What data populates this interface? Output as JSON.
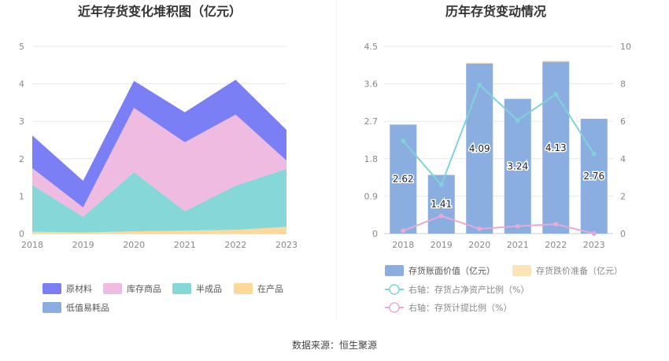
{
  "footer": {
    "source": "数据来源：恒生聚源"
  },
  "chart_data": [
    {
      "type": "area",
      "title": "近年存货变化堆积图（亿元）",
      "x": [
        "2018",
        "2019",
        "2020",
        "2021",
        "2022",
        "2023"
      ],
      "ylim": [
        0,
        5
      ],
      "yticks": [
        "0",
        "1",
        "2",
        "3",
        "4",
        "5"
      ],
      "series": [
        {
          "name": "在产品",
          "color": "#fdd898",
          "values": [
            0.05,
            0.03,
            0.06,
            0.08,
            0.1,
            0.18
          ]
        },
        {
          "name": "半成品",
          "color": "#86d8d8",
          "values": [
            1.25,
            0.42,
            1.58,
            0.52,
            1.18,
            1.55
          ]
        },
        {
          "name": "库存商品",
          "color": "#efbbe0",
          "values": [
            0.45,
            0.25,
            1.72,
            1.84,
            1.9,
            0.22
          ]
        },
        {
          "name": "原材料",
          "color": "#7b7ff5",
          "values": [
            0.87,
            0.71,
            0.72,
            0.8,
            0.93,
            0.82
          ]
        },
        {
          "name": "低值易耗品",
          "color": "#8aaee0",
          "values": [
            0,
            0,
            0,
            0,
            0,
            0
          ]
        }
      ],
      "legend_order": [
        "原材料",
        "库存商品",
        "半成品",
        "在产品",
        "低值易耗品"
      ],
      "grid": true,
      "legend": "bottom"
    },
    {
      "type": "bar",
      "title": "历年存货变动情况",
      "categories": [
        "2018",
        "2019",
        "2020",
        "2021",
        "2022",
        "2023"
      ],
      "ylim_left": [
        0,
        4.5
      ],
      "yticks_left": [
        "0",
        "0.9",
        "1.8",
        "2.7",
        "3.6",
        "4.5"
      ],
      "ylim_right": [
        0,
        10
      ],
      "yticks_right": [
        "0",
        "2",
        "4",
        "6",
        "8",
        "10"
      ],
      "bars": [
        {
          "name": "存货账面价值（亿元）",
          "color": "#8aaee0",
          "values": [
            2.62,
            1.41,
            4.09,
            3.24,
            4.13,
            2.76
          ],
          "labels": [
            "2.62",
            "1.41",
            "4.09",
            "3.24",
            "4.13",
            "2.76"
          ]
        },
        {
          "name": "存货跌价准备（亿元）",
          "color": "#fde4b8",
          "values": [
            0.0,
            0.0,
            0.02,
            0.0,
            0.03,
            0.0
          ]
        }
      ],
      "lines": [
        {
          "name": "右轴：存货占净资产比例（%）",
          "color": "#7fd3d8",
          "values": [
            4.95,
            2.6,
            7.95,
            6.05,
            7.45,
            4.25
          ]
        },
        {
          "name": "右轴：存货计提比例（%）",
          "color": "#e8a8d8",
          "values": [
            0.15,
            0.95,
            0.25,
            0.4,
            0.5,
            0.0
          ]
        }
      ],
      "grid": true,
      "legend": "bottom"
    }
  ]
}
